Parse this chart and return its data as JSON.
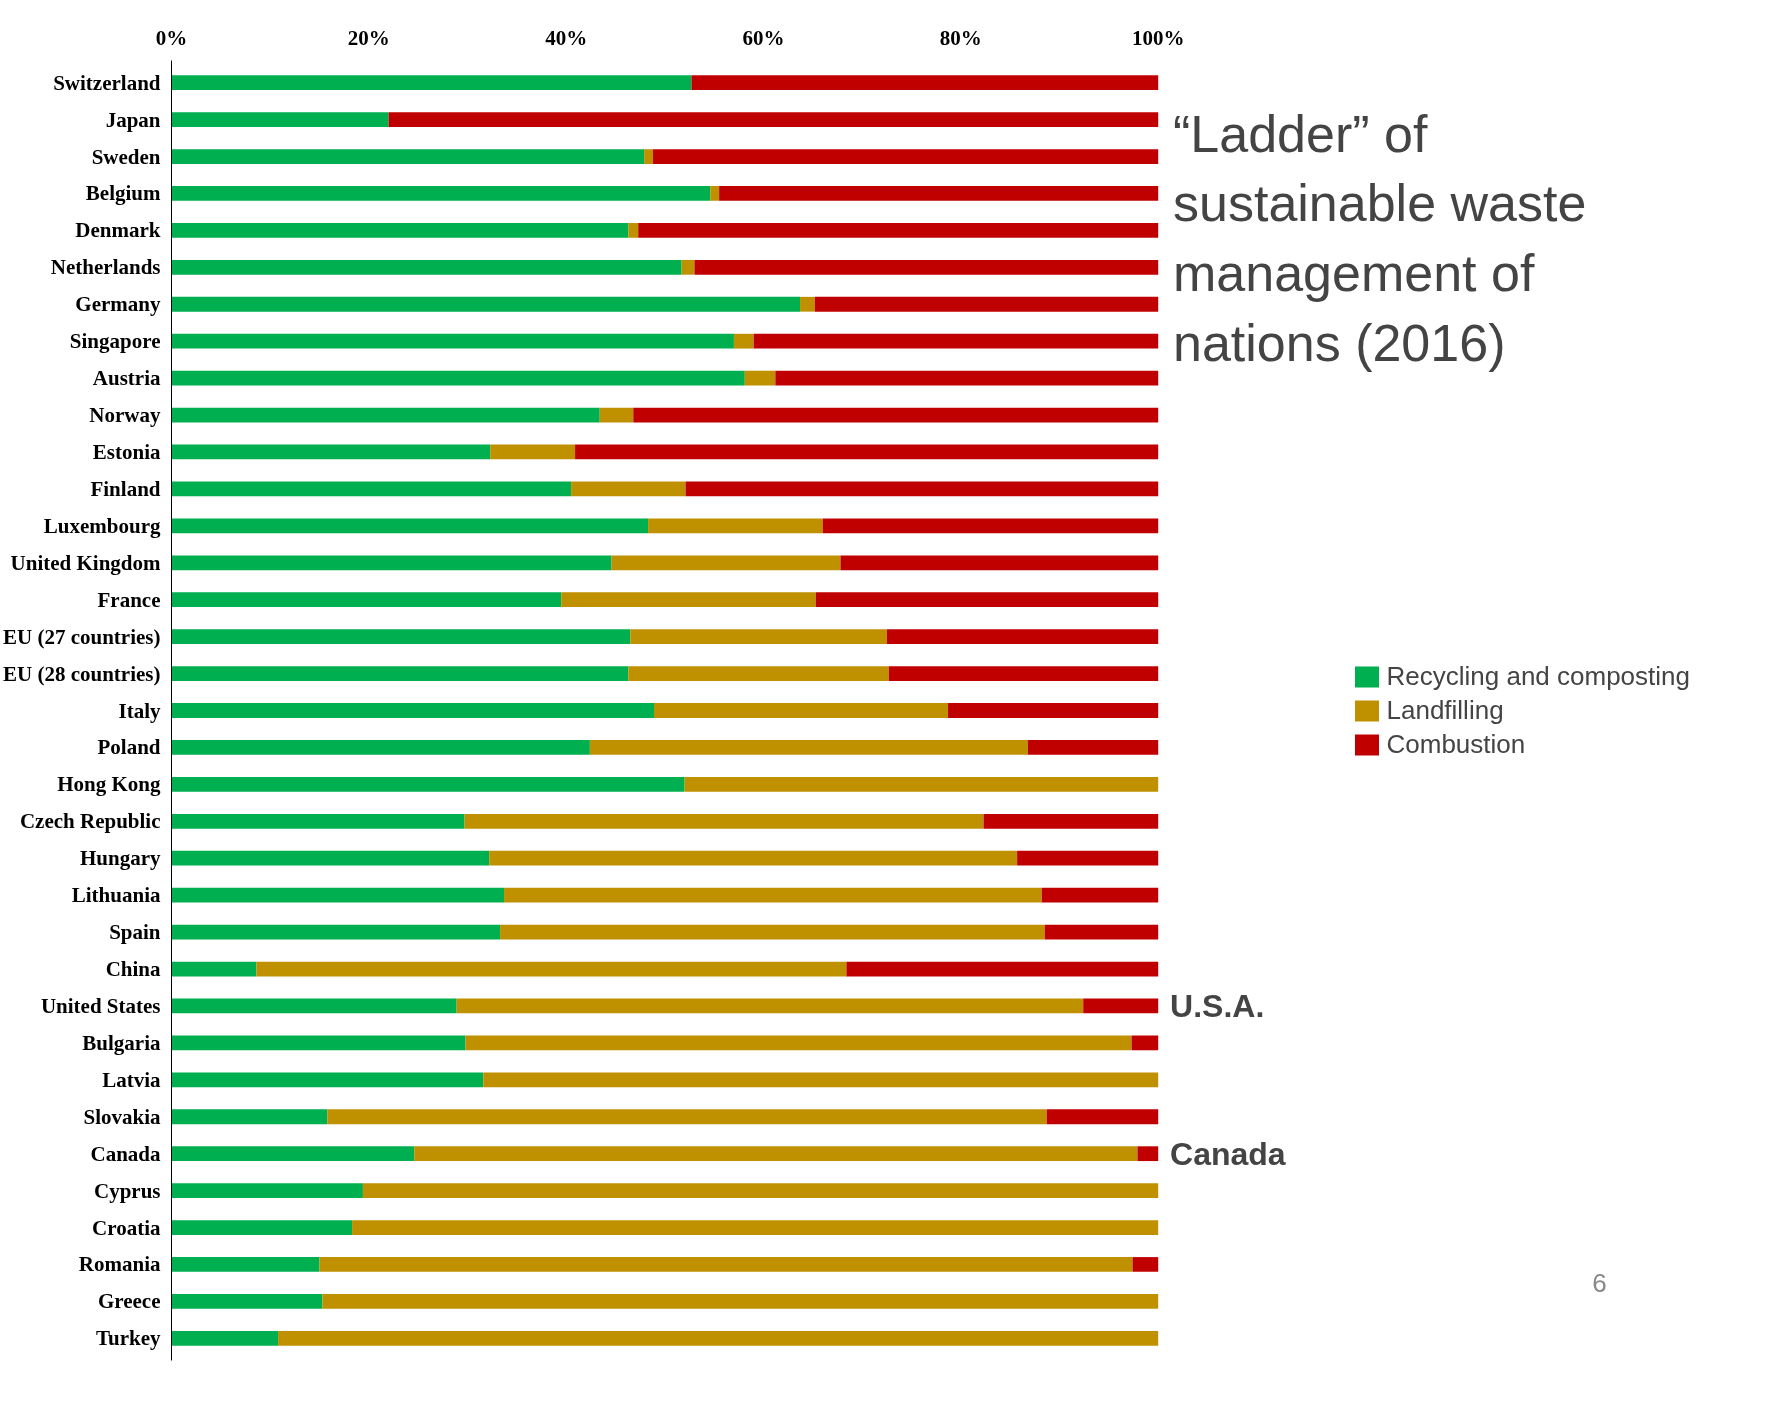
{
  "chart_data": {
    "type": "bar",
    "orientation": "horizontal",
    "stacked": true,
    "title": "“Ladder” of sustainable waste management of nations  (2016)",
    "categories": [
      "Switzerland",
      "Japan",
      "Sweden",
      "Belgium",
      "Denmark",
      "Netherlands",
      "Germany",
      "Singapore",
      "Austria",
      "Norway",
      "Estonia",
      "Finland",
      "Luxembourg",
      "United Kingdom",
      "France",
      "EU (27 countries)",
      "EU (28 countries)",
      "Italy",
      "Poland",
      "Hong Kong",
      "Czech Republic",
      "Hungary",
      "Lithuania",
      "Spain",
      "China",
      "United States",
      "Bulgaria",
      "Latvia",
      "Slovakia",
      "Canada",
      "Cyprus",
      "Croatia",
      "Romania",
      "Greece",
      "Turkey"
    ],
    "series": [
      {
        "name": "Recycling and composting",
        "color": "#00b050",
        "values": [
          52.7,
          22.0,
          47.9,
          54.6,
          46.3,
          51.7,
          63.7,
          57.0,
          58.1,
          43.4,
          32.3,
          40.5,
          48.3,
          44.6,
          39.5,
          46.5,
          46.3,
          48.9,
          42.4,
          52.0,
          29.7,
          32.2,
          33.7,
          33.3,
          8.6,
          28.9,
          29.8,
          31.6,
          15.8,
          24.6,
          19.4,
          18.3,
          15.0,
          15.3,
          10.8
        ]
      },
      {
        "name": "Landfilling",
        "color": "#bf9000",
        "values": [
          0,
          0,
          0.9,
          0.9,
          1.0,
          1.3,
          1.5,
          2.0,
          3.1,
          3.4,
          8.6,
          11.6,
          17.7,
          23.2,
          25.8,
          26.0,
          26.4,
          29.8,
          44.4,
          48.0,
          52.6,
          53.5,
          54.5,
          55.2,
          59.8,
          63.5,
          67.5,
          68.4,
          72.9,
          73.3,
          80.6,
          81.7,
          82.4,
          84.7,
          89.2
        ]
      },
      {
        "name": "Combustion",
        "color": "#c00000",
        "values": [
          47.3,
          78.0,
          51.2,
          44.5,
          52.7,
          47.0,
          34.8,
          41.0,
          38.8,
          53.2,
          59.1,
          47.9,
          34.0,
          32.2,
          34.7,
          27.5,
          27.3,
          21.3,
          13.2,
          0,
          17.7,
          14.3,
          11.8,
          11.5,
          31.6,
          7.6,
          2.7,
          0,
          11.3,
          2.1,
          0,
          0,
          2.6,
          0,
          0
        ]
      }
    ],
    "xlim": [
      0,
      100
    ],
    "xticks": [
      {
        "value": 0,
        "label": "0%"
      },
      {
        "value": 20,
        "label": "20%"
      },
      {
        "value": 40,
        "label": "40%"
      },
      {
        "value": 60,
        "label": "60%"
      },
      {
        "value": 80,
        "label": "80%"
      },
      {
        "value": 100,
        "label": "100%"
      }
    ],
    "grid": false,
    "legend": "right",
    "annotations": [
      {
        "text": "U.S.A.",
        "x": 100,
        "y": "United States"
      },
      {
        "text": "Canada",
        "x": 100,
        "y": "Canada"
      },
      "6"
    ]
  }
}
